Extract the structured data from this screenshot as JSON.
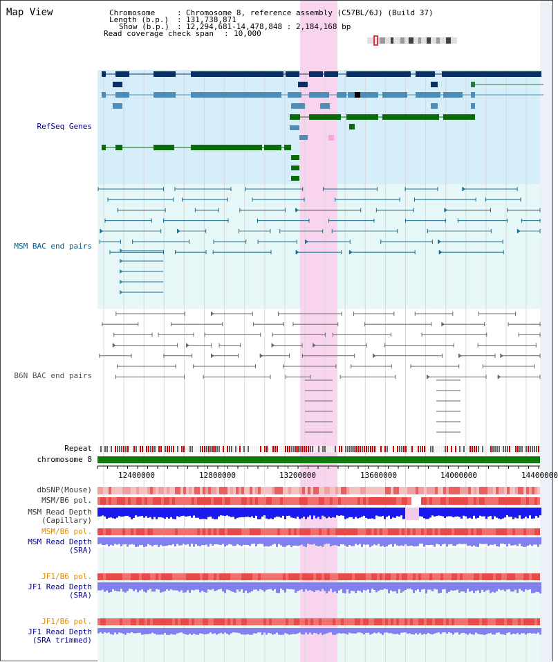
{
  "title": "Map View",
  "header": {
    "chromosome_key": "Chromosome",
    "chromosome_val": "Chromosome 8, reference assembly (C57BL/6J) (Build 37)",
    "length_key": "Length (b.p.)",
    "length_val": "131,738,871",
    "show_key": "Show (b.p.)",
    "show_val": "12,294,681-14,478,848 : 2,184,168 bp",
    "coverage_key": "Read coverage check span",
    "coverage_val": "10,000"
  },
  "tracks": {
    "refseq": {
      "label": "RefSeq Genes",
      "color": "#000080"
    },
    "msm_bac": {
      "label": "MSM BAC end pairs",
      "color": "#005a8c"
    },
    "b6n_bac": {
      "label": "B6N BAC end pairs",
      "color": "#555555"
    },
    "repeat": {
      "label": "Repeat",
      "color": "#000000"
    },
    "chrom": {
      "label": "chromosome 8",
      "color": "#000000"
    },
    "dbsnp": {
      "label": "dbSNP(Mouse)",
      "color": "#333333"
    },
    "msm_pol": {
      "label": "MSM/B6 pol.",
      "color": "#333333"
    },
    "msm_depth_cap": {
      "label": "MSM Read Depth",
      "label2": "(Capillary)",
      "color": "#333333"
    },
    "msm_pol2": {
      "label": "MSM/B6 pol.",
      "color": "#e08a00"
    },
    "msm_depth_sra": {
      "label": "MSM Read Depth",
      "label2": "(SRA)",
      "color": "#000090"
    },
    "jf1_pol": {
      "label": "JF1/B6 pol.",
      "color": "#e08a00"
    },
    "jf1_depth_sra": {
      "label": "JF1 Read Depth",
      "label2": "(SRA)",
      "color": "#000090"
    },
    "jf1_pol2": {
      "label": "JF1/B6 pol.",
      "color": "#e08a00"
    },
    "jf1_depth_trim": {
      "label": "JF1 Read Depth",
      "label2": "(SRA trimmed)",
      "color": "#000090"
    }
  },
  "axis": {
    "ticks": [
      "12400000",
      "12800000",
      "13200000",
      "13600000",
      "14000000",
      "14400000"
    ]
  },
  "colors": {
    "highlight": "#f9d4ef",
    "refseq_bg": "#d5eef9",
    "bac_bg": "#e6f7f7",
    "gene_dark": "#0a2f63",
    "gene_mid": "#4d8cb5",
    "gene_green": "#0b6b0b",
    "chrom_bar": "#0b7a0b"
  }
}
